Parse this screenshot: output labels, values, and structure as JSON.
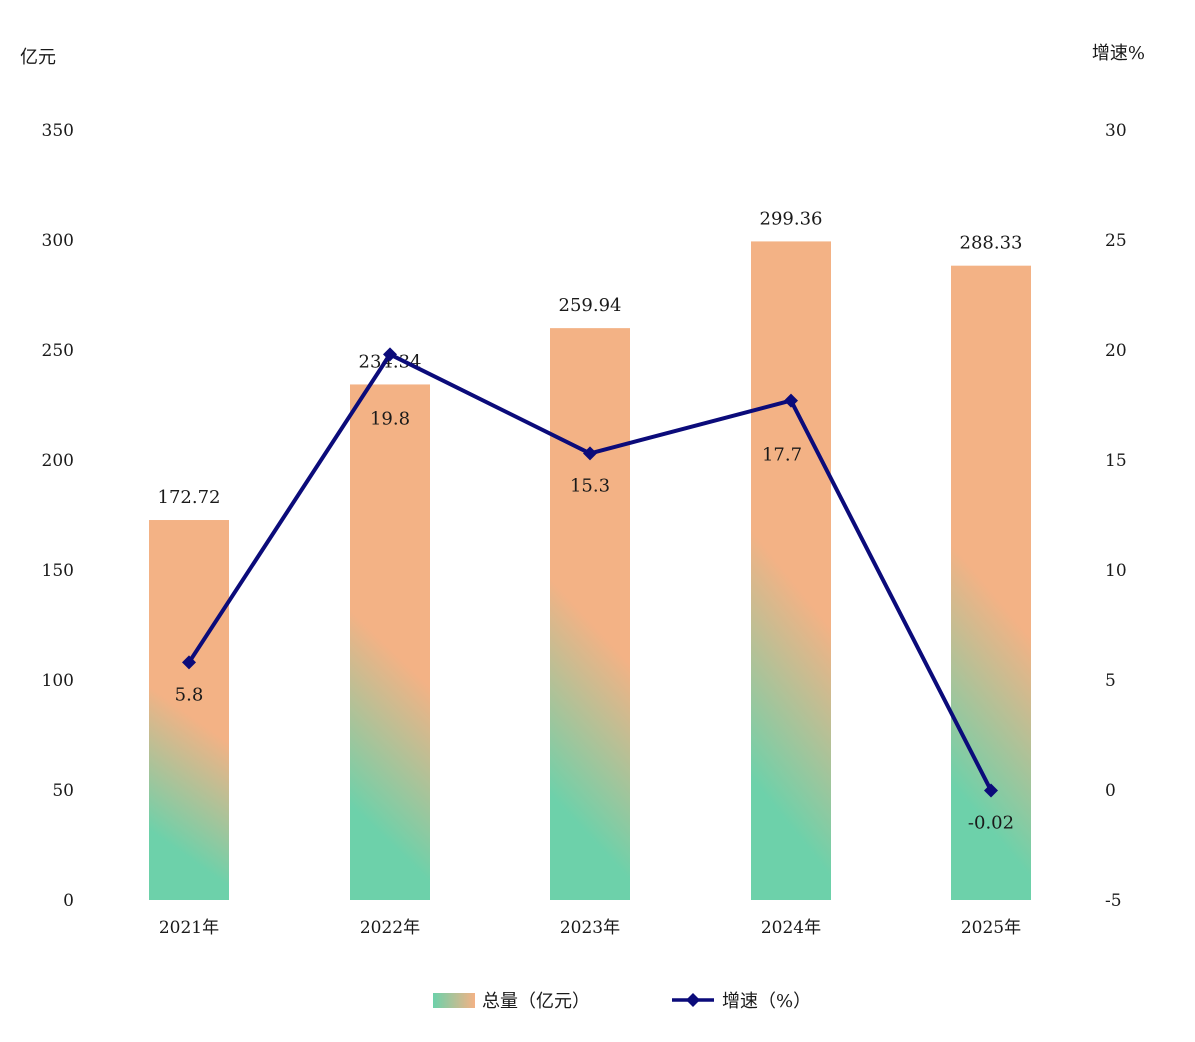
{
  "chart_data": {
    "type": "bar",
    "categories": [
      "2021年",
      "2022年",
      "2023年",
      "2024年",
      "2025年"
    ],
    "series": [
      {
        "name": "总量（亿元）",
        "type": "bar",
        "axis": "left",
        "values": [
          172.72,
          234.34,
          259.94,
          299.36,
          288.33
        ],
        "labels": [
          "172.72",
          "234.34",
          "259.94",
          "299.36",
          "288.33"
        ]
      },
      {
        "name": "增速（%）",
        "type": "line",
        "axis": "right",
        "values": [
          5.8,
          19.8,
          15.3,
          17.7,
          -0.02
        ],
        "labels": [
          "5.8",
          "19.8",
          "15.3",
          "17.7",
          "-0.02"
        ]
      }
    ],
    "y_left": {
      "label": "亿元",
      "range": [
        0,
        350
      ],
      "ticks": [
        "0",
        "50",
        "100",
        "150",
        "200",
        "250",
        "300",
        "350"
      ]
    },
    "y_right": {
      "label": "增速%",
      "range": [
        -5,
        30
      ],
      "ticks": [
        "-5",
        "0",
        "5",
        "10",
        "15",
        "20",
        "25",
        "30"
      ]
    },
    "grid": false,
    "legend_position": "bottom-center",
    "colors": {
      "bar_top": "#f3b285",
      "bar_bottom": "#6dd1aa",
      "line": "#0b0b7a",
      "text": "#1a1a1a"
    }
  }
}
